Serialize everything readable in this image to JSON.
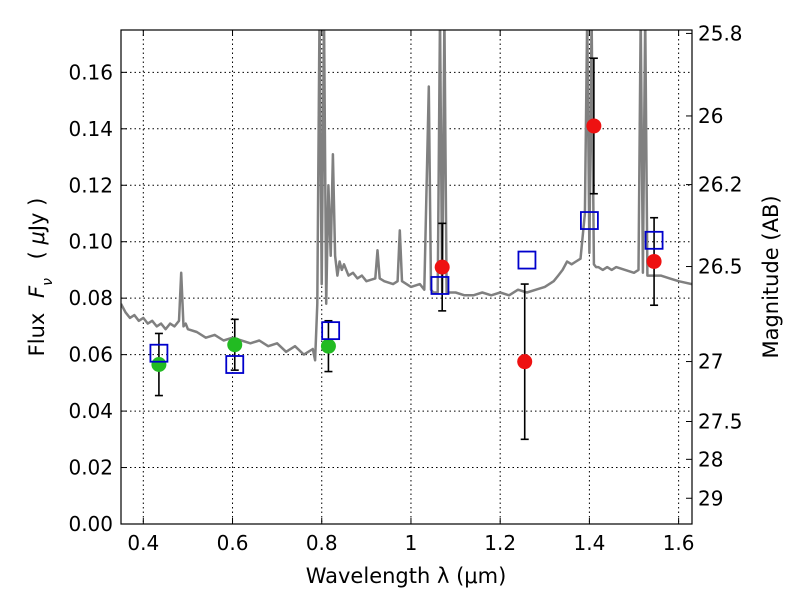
{
  "chart_data": {
    "type": "scatter",
    "title": "",
    "xlabel": "Wavelength  λ (μm)",
    "ylabel": "Flux  F_ν  ( μJy )",
    "ylabel_parts": {
      "a": "Flux",
      "b": "F",
      "sub": "ν",
      "c": "( ",
      "mu": "μ",
      "d": "Jy )"
    },
    "y2label": "Magnitude (AB)",
    "xlim": [
      0.35,
      1.63
    ],
    "ylim": [
      0.0,
      0.175
    ],
    "grid": true,
    "x_ticks": [
      0.4,
      0.6,
      0.8,
      1.0,
      1.2,
      1.4,
      1.6
    ],
    "x_tick_labels": [
      "0.4",
      "0.6",
      "0.8",
      "1",
      "1.2",
      "1.4",
      "1.6"
    ],
    "y_ticks": [
      0.0,
      0.02,
      0.04,
      0.06,
      0.08,
      0.1,
      0.12,
      0.14,
      0.16
    ],
    "y_tick_labels": [
      "0.00",
      "0.02",
      "0.04",
      "0.06",
      "0.08",
      "0.10",
      "0.12",
      "0.14",
      "0.16"
    ],
    "y2_ticks": [
      25.8,
      26,
      26.2,
      26.5,
      27,
      27.5,
      28,
      29
    ],
    "y2_tick_labels": [
      "25.8",
      "26",
      "26.2",
      "26.5",
      "27",
      "27.5",
      "28",
      "29"
    ],
    "colors": {
      "spectrum": "#808080",
      "model": "#0000cc",
      "green": "#22bb22",
      "red": "#ee1111",
      "errorbar": "#000000"
    },
    "series": [
      {
        "kind": "line",
        "x": [
          0.35,
          0.36,
          0.37,
          0.38,
          0.39,
          0.4,
          0.41,
          0.42,
          0.43,
          0.44,
          0.45,
          0.46,
          0.47,
          0.48,
          0.485,
          0.49,
          0.495,
          0.5,
          0.52,
          0.54,
          0.56,
          0.58,
          0.6,
          0.62,
          0.64,
          0.66,
          0.68,
          0.7,
          0.72,
          0.74,
          0.76,
          0.78,
          0.785,
          0.79,
          0.795,
          0.8,
          0.805,
          0.81,
          0.815,
          0.82,
          0.825,
          0.83,
          0.835,
          0.84,
          0.845,
          0.85,
          0.86,
          0.87,
          0.88,
          0.89,
          0.9,
          0.92,
          0.925,
          0.93,
          0.94,
          0.96,
          0.97,
          0.975,
          0.98,
          1.0,
          1.02,
          1.03,
          1.04,
          1.045,
          1.05,
          1.06,
          1.065,
          1.07,
          1.075,
          1.08,
          1.1,
          1.12,
          1.14,
          1.16,
          1.18,
          1.2,
          1.22,
          1.24,
          1.26,
          1.28,
          1.3,
          1.32,
          1.33,
          1.34,
          1.35,
          1.36,
          1.37,
          1.38,
          1.39,
          1.395,
          1.4,
          1.405,
          1.41,
          1.415,
          1.42,
          1.43,
          1.44,
          1.45,
          1.46,
          1.48,
          1.5,
          1.51,
          1.515,
          1.52,
          1.525,
          1.53,
          1.54,
          1.56,
          1.58,
          1.6,
          1.63
        ],
        "y": [
          0.078,
          0.075,
          0.073,
          0.074,
          0.072,
          0.073,
          0.071,
          0.072,
          0.07,
          0.071,
          0.069,
          0.071,
          0.07,
          0.072,
          0.089,
          0.07,
          0.071,
          0.069,
          0.068,
          0.066,
          0.067,
          0.065,
          0.066,
          0.065,
          0.064,
          0.065,
          0.063,
          0.064,
          0.061,
          0.063,
          0.06,
          0.062,
          0.058,
          0.078,
          0.18,
          0.085,
          0.18,
          0.078,
          0.12,
          0.095,
          0.131,
          0.095,
          0.088,
          0.093,
          0.09,
          0.092,
          0.088,
          0.089,
          0.087,
          0.088,
          0.086,
          0.087,
          0.097,
          0.087,
          0.086,
          0.085,
          0.086,
          0.104,
          0.086,
          0.084,
          0.085,
          0.083,
          0.155,
          0.083,
          0.082,
          0.082,
          0.18,
          0.082,
          0.18,
          0.082,
          0.082,
          0.081,
          0.081,
          0.082,
          0.081,
          0.082,
          0.081,
          0.083,
          0.082,
          0.083,
          0.084,
          0.086,
          0.088,
          0.09,
          0.093,
          0.092,
          0.093,
          0.094,
          0.11,
          0.18,
          0.096,
          0.18,
          0.092,
          0.091,
          0.091,
          0.09,
          0.091,
          0.09,
          0.091,
          0.09,
          0.089,
          0.09,
          0.18,
          0.089,
          0.18,
          0.088,
          0.088,
          0.088,
          0.087,
          0.086,
          0.085
        ]
      },
      {
        "kind": "model-squares",
        "x": [
          0.435,
          0.605,
          0.82,
          1.065,
          1.26,
          1.4,
          1.545
        ],
        "y": [
          0.0605,
          0.0565,
          0.0685,
          0.0845,
          0.0935,
          0.1075,
          0.1005
        ]
      },
      {
        "kind": "points-green",
        "x": [
          0.435,
          0.605,
          0.815
        ],
        "y": [
          0.0565,
          0.0635,
          0.063
        ],
        "err": [
          0.011,
          0.009,
          0.009
        ]
      },
      {
        "kind": "points-red",
        "x": [
          1.07,
          1.255,
          1.41,
          1.545
        ],
        "y": [
          0.091,
          0.0575,
          0.141,
          0.093
        ],
        "err": [
          0.0155,
          0.0275,
          0.024,
          0.0155
        ]
      }
    ]
  }
}
